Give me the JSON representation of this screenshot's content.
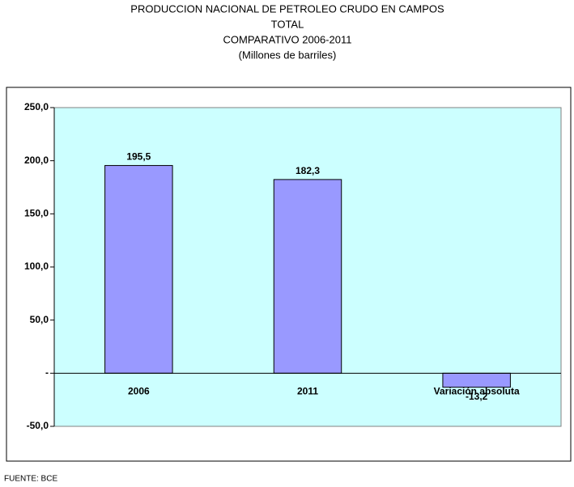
{
  "chart_data": {
    "type": "bar",
    "title_lines": [
      "PRODUCCION NACIONAL DE PETROLEO CRUDO EN CAMPOS",
      "TOTAL",
      "COMPARATIVO 2006-2011",
      "(Millones de barriles)"
    ],
    "categories": [
      "2006",
      "2011",
      "Variación absoluta"
    ],
    "values": [
      195.5,
      182.3,
      -13.2
    ],
    "value_labels": [
      "195,5",
      "182,3",
      "-13,2"
    ],
    "color": "#9999ff",
    "ylim": [
      -50,
      250
    ],
    "yticks": [
      {
        "value": -50,
        "label": "-50,0"
      },
      {
        "value": 0,
        "label": "-"
      },
      {
        "value": 50,
        "label": "50,0"
      },
      {
        "value": 100,
        "label": "100,0"
      },
      {
        "value": 150,
        "label": "150,0"
      },
      {
        "value": 200,
        "label": "200,0"
      },
      {
        "value": 250,
        "label": "250,0"
      }
    ],
    "grid": false,
    "source": "FUENTE: BCE"
  }
}
